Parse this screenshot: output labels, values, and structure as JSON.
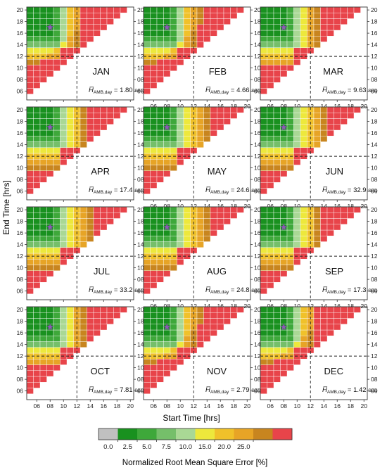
{
  "chart_data": {
    "type": "heatmap",
    "xlabel": "Start Time [hrs]",
    "ylabel": "End Time [hrs]",
    "x_ticks": [
      "06",
      "08",
      "10",
      "12",
      "14",
      "16",
      "18",
      "20"
    ],
    "y_ticks": [
      "06",
      "08",
      "10",
      "12",
      "14",
      "16",
      "18",
      "20"
    ],
    "x_range_hrs": [
      4.5,
      20.5
    ],
    "y_range_hrs": [
      4.5,
      20.5
    ],
    "reference_lines_hrs": {
      "start": 12,
      "end": 12
    },
    "marker": {
      "start_hrs": 8,
      "end_hrs": 17,
      "shape": "star"
    },
    "grid": false,
    "legend_position": "bottom",
    "annotation_symbol": "H̅",
    "annotation_subscript": "AMB,day",
    "annotation_unit": "SED",
    "panels": [
      {
        "month": "JAN",
        "value": "1.80"
      },
      {
        "month": "FEB",
        "value": "4.66"
      },
      {
        "month": "MAR",
        "value": "9.63"
      },
      {
        "month": "APR",
        "value": "17.4"
      },
      {
        "month": "MAY",
        "value": "24.6"
      },
      {
        "month": "JUN",
        "value": "32.9"
      },
      {
        "month": "JUL",
        "value": "33.2"
      },
      {
        "month": "AUG",
        "value": "24.8"
      },
      {
        "month": "SEP",
        "value": "17.3"
      },
      {
        "month": "OCT",
        "value": "7.81"
      },
      {
        "month": "NOV",
        "value": "2.79"
      },
      {
        "month": "DEC",
        "value": "1.42"
      }
    ],
    "colorbar": {
      "title": "Normalized Root Mean Square Error [%]",
      "tick_labels": [
        "0.0",
        "2.5",
        "5.0",
        "7.5",
        "10.0",
        "15.0",
        "20.0",
        "25.0"
      ],
      "colors": [
        "#c0c0c0",
        "#19911f",
        "#3ea83a",
        "#75bf6a",
        "#a9d895",
        "#ede83c",
        "#f0c12a",
        "#e7a426",
        "#c8851f",
        "#e8444a"
      ]
    }
  }
}
